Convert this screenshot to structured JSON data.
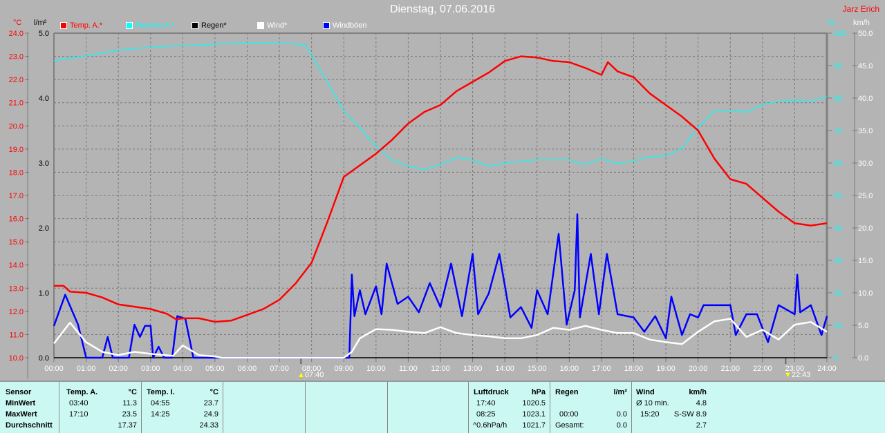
{
  "header": {
    "title": "Dienstag, 07.06.2016",
    "author": "Jarz Erich"
  },
  "units": {
    "temp": "°C",
    "rain": "l/m²",
    "humidity": "%",
    "wind": "km/h"
  },
  "legend": [
    {
      "label": "Temp. A.*",
      "color": "#ff0000"
    },
    {
      "label": "Feuchte A.*",
      "color": "#00ffff"
    },
    {
      "label": "Regen*",
      "color": "#000000"
    },
    {
      "label": "Wind*",
      "color": "#ffffff"
    },
    {
      "label": "Windböen",
      "color": "#0000ff"
    }
  ],
  "markers": {
    "sunrise": "07:40",
    "sunset": "22:43"
  },
  "chart_data": {
    "type": "line",
    "title": "Dienstag, 07.06.2016",
    "x_ticks": [
      "00:00",
      "01:00",
      "02:00",
      "03:00",
      "04:00",
      "05:00",
      "06:00",
      "07:00",
      "08:00",
      "09:00",
      "10:00",
      "11:00",
      "12:00",
      "13:00",
      "14:00",
      "15:00",
      "16:00",
      "17:00",
      "18:00",
      "19:00",
      "20:00",
      "21:00",
      "22:00",
      "23:00",
      "24:00"
    ],
    "xlim": [
      0,
      24
    ],
    "axes": {
      "temp": {
        "range": [
          10,
          24
        ],
        "ticks": [
          "24.0",
          "23.0",
          "22.0",
          "21.0",
          "20.0",
          "19.0",
          "18.0",
          "17.0",
          "16.0",
          "15.0",
          "14.0",
          "13.0",
          "12.0",
          "11.0",
          "10.0"
        ]
      },
      "rain": {
        "range": [
          0,
          5
        ],
        "ticks": [
          "5.0",
          "4.0",
          "3.0",
          "2.0",
          "1.0",
          "0.0"
        ]
      },
      "humidity": {
        "range": [
          0,
          100
        ],
        "ticks": [
          "100",
          "90",
          "80",
          "70",
          "60",
          "50",
          "40",
          "30",
          "20",
          "10",
          "0"
        ]
      },
      "wind": {
        "range": [
          0,
          50
        ],
        "ticks": [
          "50.0",
          "45.0",
          "40.0",
          "35.0",
          "30.0",
          "25.0",
          "20.0",
          "15.0",
          "10.0",
          "5.0",
          "0.0"
        ]
      }
    },
    "series": [
      {
        "name": "Temp. A.",
        "axis": "temp",
        "color": "#ff0000",
        "points": [
          [
            0,
            13.1
          ],
          [
            0.3,
            13.1
          ],
          [
            0.5,
            12.85
          ],
          [
            1,
            12.8
          ],
          [
            1.5,
            12.6
          ],
          [
            2,
            12.3
          ],
          [
            2.5,
            12.2
          ],
          [
            3,
            12.1
          ],
          [
            3.5,
            11.9
          ],
          [
            3.8,
            11.65
          ],
          [
            4,
            11.7
          ],
          [
            4.5,
            11.7
          ],
          [
            5,
            11.55
          ],
          [
            5.5,
            11.6
          ],
          [
            6,
            11.85
          ],
          [
            6.5,
            12.1
          ],
          [
            7,
            12.5
          ],
          [
            7.5,
            13.2
          ],
          [
            8,
            14.1
          ],
          [
            8.5,
            15.9
          ],
          [
            9,
            17.8
          ],
          [
            9.5,
            18.3
          ],
          [
            10,
            18.8
          ],
          [
            10.5,
            19.4
          ],
          [
            11,
            20.1
          ],
          [
            11.5,
            20.6
          ],
          [
            12,
            20.9
          ],
          [
            12.5,
            21.5
          ],
          [
            13,
            21.9
          ],
          [
            13.5,
            22.3
          ],
          [
            14,
            22.8
          ],
          [
            14.5,
            23.0
          ],
          [
            15,
            22.95
          ],
          [
            15.5,
            22.8
          ],
          [
            16,
            22.75
          ],
          [
            16.5,
            22.5
          ],
          [
            17,
            22.2
          ],
          [
            17.2,
            22.75
          ],
          [
            17.5,
            22.35
          ],
          [
            18,
            22.1
          ],
          [
            18.5,
            21.4
          ],
          [
            19,
            20.9
          ],
          [
            19.5,
            20.4
          ],
          [
            20,
            19.8
          ],
          [
            20.5,
            18.6
          ],
          [
            21,
            17.7
          ],
          [
            21.5,
            17.5
          ],
          [
            22,
            16.9
          ],
          [
            22.5,
            16.3
          ],
          [
            23,
            15.8
          ],
          [
            23.5,
            15.7
          ],
          [
            24,
            15.8
          ]
        ]
      },
      {
        "name": "Feuchte A.",
        "axis": "humidity",
        "color": "#00ffff",
        "points": [
          [
            0,
            91.5
          ],
          [
            1,
            93
          ],
          [
            2,
            94.7
          ],
          [
            3,
            95.7
          ],
          [
            4,
            96.2
          ],
          [
            5,
            96.6
          ],
          [
            5.7,
            97
          ],
          [
            7,
            97
          ],
          [
            7.8,
            96.4
          ],
          [
            8.5,
            84.7
          ],
          [
            9,
            76
          ],
          [
            9.5,
            70.9
          ],
          [
            10,
            65
          ],
          [
            10.5,
            61
          ],
          [
            11,
            59
          ],
          [
            11.5,
            58
          ],
          [
            12,
            59.6
          ],
          [
            12.5,
            61.7
          ],
          [
            13,
            60.9
          ],
          [
            13.5,
            59
          ],
          [
            14,
            60
          ],
          [
            15,
            61
          ],
          [
            16,
            61
          ],
          [
            16.5,
            59.6
          ],
          [
            17,
            61.3
          ],
          [
            17.5,
            59.8
          ],
          [
            18,
            60.6
          ],
          [
            18.5,
            62
          ],
          [
            19,
            62.2
          ],
          [
            19.5,
            64.5
          ],
          [
            20,
            70.9
          ],
          [
            20.5,
            76
          ],
          [
            21,
            76
          ],
          [
            21.5,
            75.7
          ],
          [
            22,
            78
          ],
          [
            22.5,
            79
          ],
          [
            23,
            79.4
          ],
          [
            23.5,
            79
          ],
          [
            24,
            80.4
          ]
        ]
      },
      {
        "name": "Regen",
        "axis": "rain",
        "color": "#000000",
        "points": [
          [
            0,
            0
          ],
          [
            24,
            0
          ]
        ]
      },
      {
        "name": "Wind",
        "axis": "wind",
        "color": "#ffffff",
        "points": [
          [
            0,
            2.2
          ],
          [
            0.5,
            5.4
          ],
          [
            1,
            2.4
          ],
          [
            1.5,
            0.9
          ],
          [
            2,
            0.4
          ],
          [
            2.5,
            0.9
          ],
          [
            3,
            0.6
          ],
          [
            3.7,
            0.3
          ],
          [
            4,
            1.9
          ],
          [
            4.5,
            0.4
          ],
          [
            5,
            0.2
          ],
          [
            5.2,
            0
          ],
          [
            9,
            0
          ],
          [
            9.25,
            0.9
          ],
          [
            9.5,
            3
          ],
          [
            10,
            4.4
          ],
          [
            10.5,
            4.3
          ],
          [
            11,
            4
          ],
          [
            11.5,
            3.8
          ],
          [
            12,
            4.7
          ],
          [
            12.5,
            3.8
          ],
          [
            13,
            3.5
          ],
          [
            13.5,
            3.3
          ],
          [
            14,
            3
          ],
          [
            14.5,
            3
          ],
          [
            15,
            3.5
          ],
          [
            15.5,
            4.6
          ],
          [
            16,
            4.3
          ],
          [
            16.5,
            4.9
          ],
          [
            17,
            4.3
          ],
          [
            17.5,
            3.8
          ],
          [
            18,
            3.8
          ],
          [
            18.5,
            2.8
          ],
          [
            19,
            2.4
          ],
          [
            19.5,
            2.1
          ],
          [
            20,
            4
          ],
          [
            20.5,
            5.6
          ],
          [
            21,
            6
          ],
          [
            21.5,
            3.2
          ],
          [
            22,
            4.3
          ],
          [
            22.5,
            2.8
          ],
          [
            23,
            5.1
          ],
          [
            23.5,
            5.5
          ],
          [
            24,
            4
          ]
        ]
      },
      {
        "name": "Windböen",
        "axis": "wind",
        "color": "#0000ff",
        "points": [
          [
            0,
            4.9
          ],
          [
            0.35,
            9.7
          ],
          [
            0.75,
            5.1
          ],
          [
            1,
            0
          ],
          [
            1.5,
            0
          ],
          [
            1.67,
            3.2
          ],
          [
            1.83,
            0
          ],
          [
            2.33,
            0
          ],
          [
            2.5,
            5.1
          ],
          [
            2.67,
            3.2
          ],
          [
            2.83,
            4.9
          ],
          [
            3,
            4.9
          ],
          [
            3.08,
            0
          ],
          [
            3.25,
            1.7
          ],
          [
            3.42,
            0
          ],
          [
            3.67,
            0
          ],
          [
            3.83,
            6.4
          ],
          [
            4.08,
            6.0
          ],
          [
            4.33,
            0
          ],
          [
            9.17,
            0
          ],
          [
            9.25,
            12.8
          ],
          [
            9.33,
            6.4
          ],
          [
            9.5,
            10.4
          ],
          [
            9.67,
            6.7
          ],
          [
            10,
            11.0
          ],
          [
            10.17,
            6.7
          ],
          [
            10.33,
            14.5
          ],
          [
            10.67,
            8.3
          ],
          [
            11,
            9.4
          ],
          [
            11.33,
            7.0
          ],
          [
            11.67,
            11.5
          ],
          [
            12,
            7.8
          ],
          [
            12.33,
            14.5
          ],
          [
            12.67,
            6.4
          ],
          [
            13,
            16.0
          ],
          [
            13.17,
            6.7
          ],
          [
            13.5,
            9.9
          ],
          [
            13.83,
            16.0
          ],
          [
            14.17,
            6.2
          ],
          [
            14.5,
            7.8
          ],
          [
            14.83,
            4.6
          ],
          [
            15,
            10.4
          ],
          [
            15.33,
            6.7
          ],
          [
            15.67,
            19.1
          ],
          [
            15.92,
            5.1
          ],
          [
            16.17,
            10.4
          ],
          [
            16.25,
            22.1
          ],
          [
            16.33,
            6.2
          ],
          [
            16.67,
            16.0
          ],
          [
            16.92,
            6.7
          ],
          [
            17.17,
            16.0
          ],
          [
            17.5,
            6.7
          ],
          [
            18,
            6.2
          ],
          [
            18.33,
            4.0
          ],
          [
            18.67,
            6.4
          ],
          [
            19,
            3.0
          ],
          [
            19.17,
            9.4
          ],
          [
            19.5,
            3.5
          ],
          [
            19.75,
            6.7
          ],
          [
            20,
            6.2
          ],
          [
            20.17,
            8.1
          ],
          [
            20.5,
            8.1
          ],
          [
            21,
            8.1
          ],
          [
            21.17,
            3.5
          ],
          [
            21.5,
            6.7
          ],
          [
            21.83,
            6.7
          ],
          [
            22.17,
            2.4
          ],
          [
            22.5,
            8.1
          ],
          [
            23,
            6.7
          ],
          [
            23.08,
            12.8
          ],
          [
            23.17,
            7.0
          ],
          [
            23.5,
            8.1
          ],
          [
            23.83,
            3.5
          ],
          [
            24,
            6.4
          ]
        ]
      }
    ]
  },
  "stats": {
    "temp_a": {
      "sensor": "Sensor",
      "min_label": "MinWert",
      "max_label": "MaxWert",
      "avg_label": "Durchschnitt",
      "header": "Temp. A.",
      "unit": "°C",
      "min_time": "03:40",
      "min": "11.3",
      "max_time": "17:10",
      "max": "23.5",
      "avg": "17.37"
    },
    "temp_i": {
      "header": "Temp. I.",
      "unit": "°C",
      "min_time": "04:55",
      "min": "23.7",
      "max_time": "14:25",
      "max": "24.9",
      "avg": "24.33"
    },
    "pressure": {
      "header": "Luftdruck",
      "unit": "hPa",
      "min_time": "17:40",
      "min": "1020.5",
      "max_time": "08:25",
      "max": "1023.1",
      "trend": "^0.6hPa/h",
      "avg": "1021.7"
    },
    "rain": {
      "header": "Regen",
      "unit": "l/m²",
      "time": "00:00",
      "value": "0.0",
      "total_label": "Gesamt:",
      "total": "0.0"
    },
    "wind": {
      "header": "Wind",
      "unit": "km/h",
      "avg10_label": "Ø 10 min.",
      "avg10": "4.8",
      "gust_time": "15:20",
      "gust": "S-SW 8.9",
      "avg": "2.7"
    }
  }
}
